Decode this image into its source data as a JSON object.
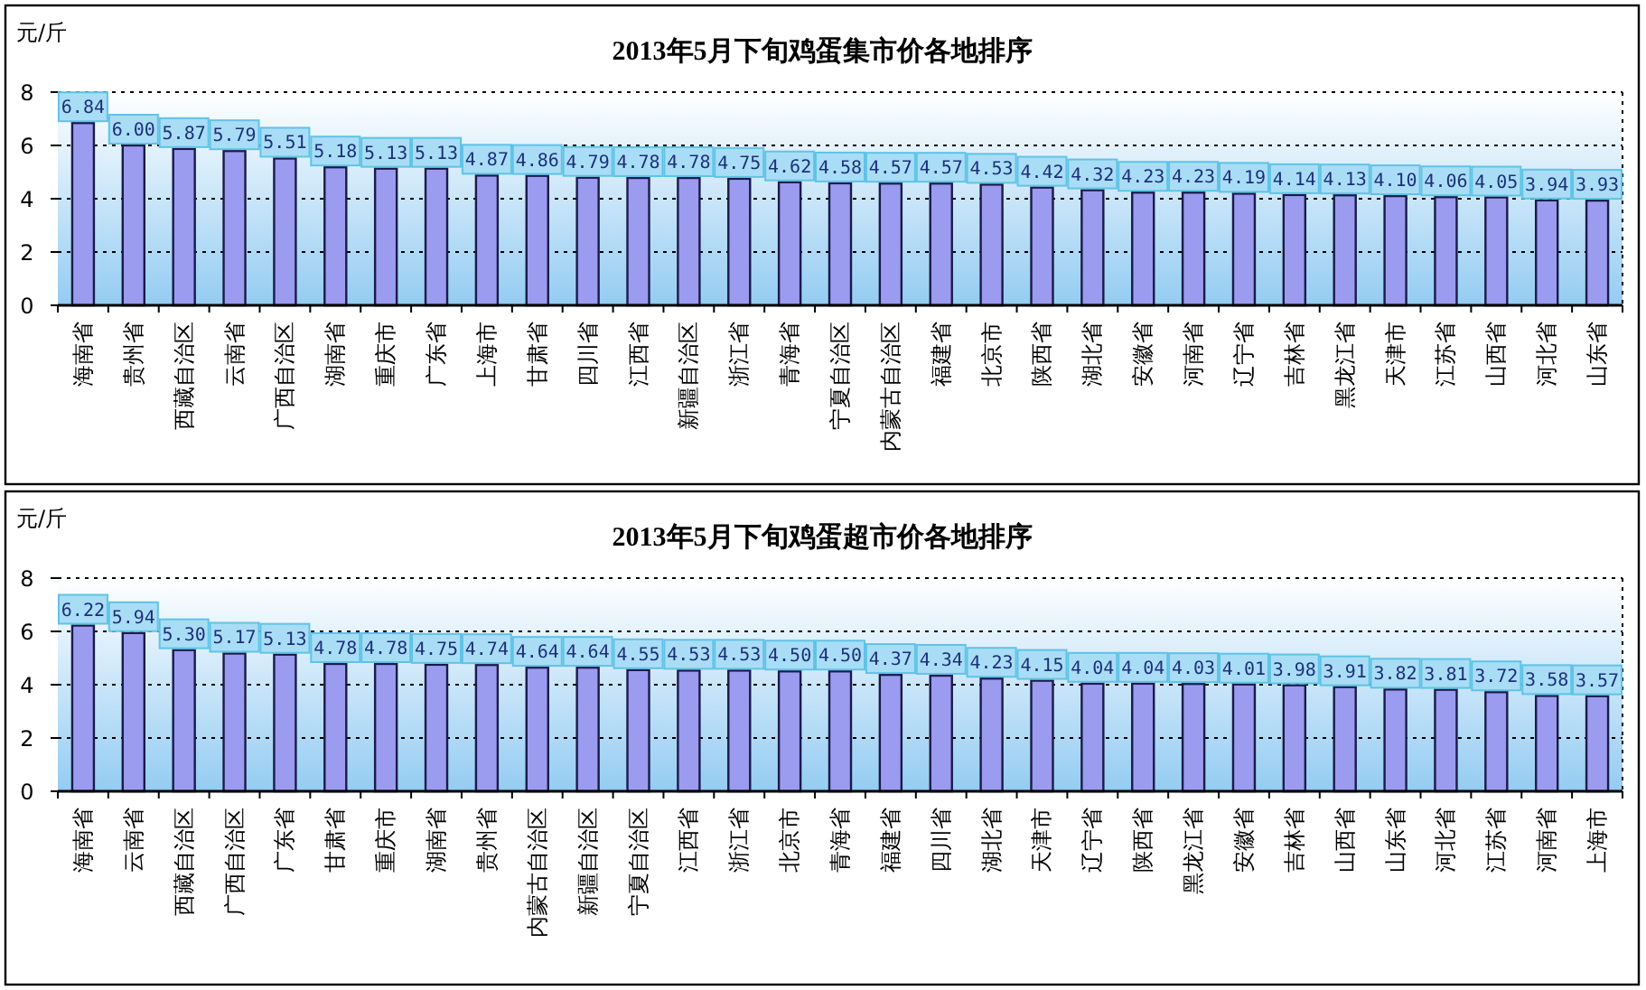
{
  "chart_data": [
    {
      "type": "bar",
      "title": "2013年5月下旬鸡蛋集市价各地排序",
      "ylabel": "元/斤",
      "categories": [
        "海南省",
        "贵州省",
        "西藏自治区",
        "云南省",
        "广西自治区",
        "湖南省",
        "重庆市",
        "广东省",
        "上海市",
        "甘肃省",
        "四川省",
        "江西省",
        "新疆自治区",
        "浙江省",
        "青海省",
        "宁夏自治区",
        "内蒙古自治区",
        "福建省",
        "北京市",
        "陕西省",
        "湖北省",
        "安徽省",
        "河南省",
        "辽宁省",
        "吉林省",
        "黑龙江省",
        "天津市",
        "江苏省",
        "山西省",
        "河北省",
        "山东省"
      ],
      "values": [
        6.84,
        6.0,
        5.87,
        5.79,
        5.51,
        5.18,
        5.13,
        5.13,
        4.87,
        4.86,
        4.79,
        4.78,
        4.78,
        4.75,
        4.62,
        4.58,
        4.57,
        4.57,
        4.53,
        4.42,
        4.32,
        4.23,
        4.23,
        4.19,
        4.14,
        4.13,
        4.1,
        4.06,
        4.05,
        3.94,
        3.93
      ],
      "value_labels": [
        "6.84",
        "6.00",
        "5.87",
        "5.79",
        "5.51",
        "5.18",
        "5.13",
        "5.13",
        "4.87",
        "4.86",
        "4.79",
        "4.78",
        "4.78",
        "4.75",
        "4.62",
        "4.58",
        "4.57",
        "4.57",
        "4.53",
        "4.42",
        "4.32",
        "4.23",
        "4.23",
        "4.19",
        "4.14",
        "4.13",
        "4.10",
        "4.06",
        "4.05",
        "3.94",
        "3.93"
      ],
      "color": "#9b9bef",
      "ylim": [
        0,
        8
      ],
      "yticks": [
        0,
        2,
        4,
        6,
        8
      ],
      "grid": "y"
    },
    {
      "type": "bar",
      "title": "2013年5月下旬鸡蛋超市价各地排序",
      "ylabel": "元/斤",
      "categories": [
        "海南省",
        "云南省",
        "西藏自治区",
        "广西自治区",
        "广东省",
        "甘肃省",
        "重庆市",
        "湖南省",
        "贵州省",
        "内蒙古自治区",
        "新疆自治区",
        "宁夏自治区",
        "江西省",
        "浙江省",
        "北京市",
        "青海省",
        "福建省",
        "四川省",
        "湖北省",
        "天津市",
        "辽宁省",
        "陕西省",
        "黑龙江省",
        "安徽省",
        "吉林省",
        "山西省",
        "山东省",
        "河北省",
        "江苏省",
        "河南省",
        "上海市"
      ],
      "values": [
        6.22,
        5.94,
        5.3,
        5.17,
        5.13,
        4.78,
        4.78,
        4.75,
        4.74,
        4.64,
        4.64,
        4.55,
        4.53,
        4.53,
        4.5,
        4.5,
        4.37,
        4.34,
        4.23,
        4.15,
        4.04,
        4.04,
        4.03,
        4.01,
        3.98,
        3.91,
        3.82,
        3.81,
        3.72,
        3.58,
        3.57
      ],
      "value_labels": [
        "6.22",
        "5.94",
        "5.30",
        "5.17",
        "5.13",
        "4.78",
        "4.78",
        "4.75",
        "4.74",
        "4.64",
        "4.64",
        "4.55",
        "4.53",
        "4.53",
        "4.50",
        "4.50",
        "4.37",
        "4.34",
        "4.23",
        "4.15",
        "4.04",
        "4.04",
        "4.03",
        "4.01",
        "3.98",
        "3.91",
        "3.82",
        "3.81",
        "3.72",
        "3.58",
        "3.57"
      ],
      "color": "#9b9bef",
      "ylim": [
        0,
        8
      ],
      "yticks": [
        0,
        2,
        4,
        6,
        8
      ],
      "grid": "y"
    }
  ]
}
